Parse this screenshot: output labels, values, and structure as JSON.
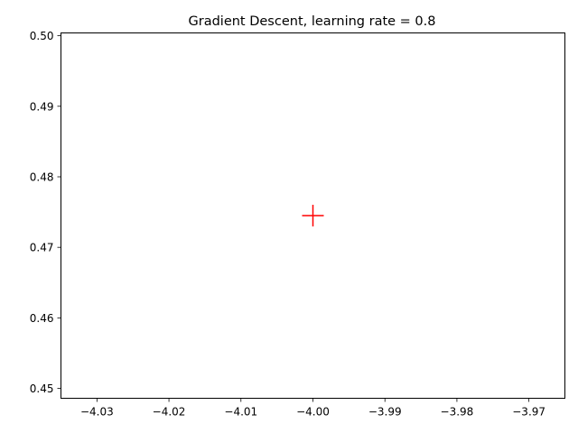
{
  "chart_data": {
    "type": "scatter",
    "title": "Gradient Descent, learning rate = 0.8",
    "xlabel": "",
    "ylabel": "",
    "xlim": [
      -4.035,
      -3.965
    ],
    "ylim": [
      0.4486,
      0.5004
    ],
    "xticks": [
      -4.03,
      -4.02,
      -4.01,
      -4.0,
      -3.99,
      -3.98,
      -3.97
    ],
    "xtick_labels": [
      "−4.03",
      "−4.02",
      "−4.01",
      "−4.00",
      "−3.99",
      "−3.98",
      "−3.97"
    ],
    "yticks": [
      0.45,
      0.46,
      0.47,
      0.48,
      0.49,
      0.5
    ],
    "ytick_labels": [
      "0.45",
      "0.46",
      "0.47",
      "0.48",
      "0.49",
      "0.50"
    ],
    "grid": false,
    "series": [
      {
        "marker": "plus",
        "color": "#ff0000",
        "points": [
          {
            "x": -4.0,
            "y": 0.4745
          }
        ]
      }
    ]
  }
}
